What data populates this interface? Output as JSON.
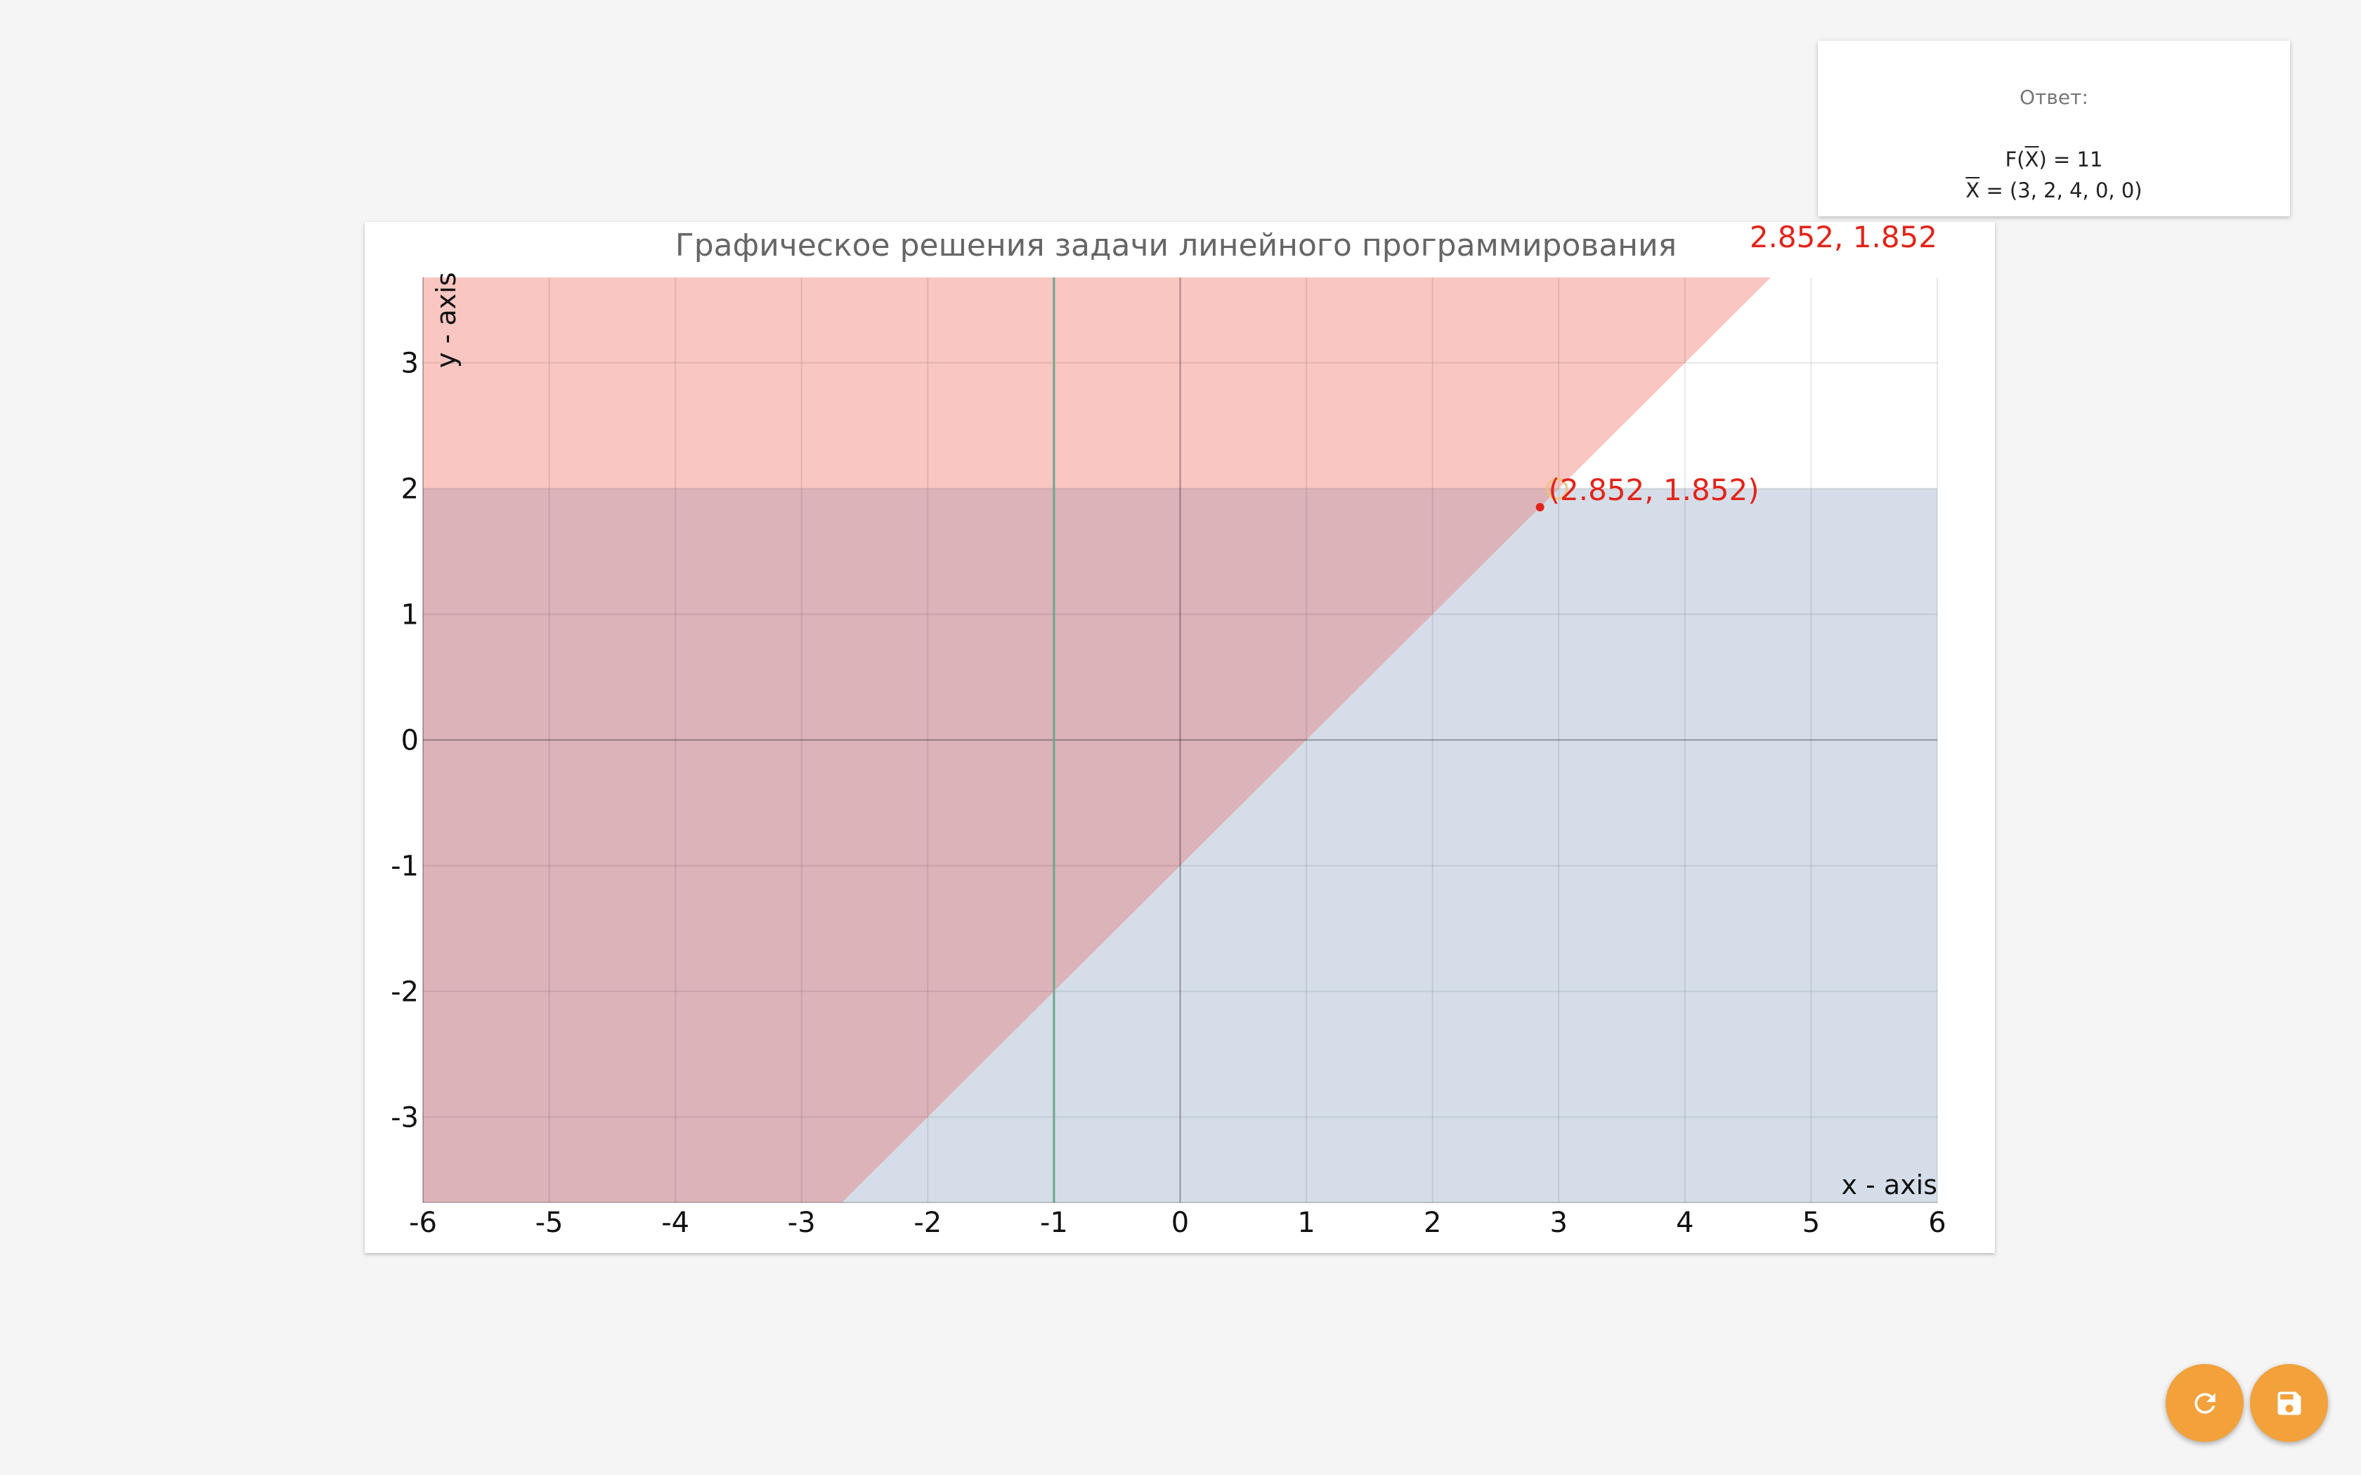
{
  "answer": {
    "title": "Ответ:",
    "f_label": "F(",
    "f_var": "X",
    "f_rest": ") = 11",
    "x_var": "X",
    "x_rest": " = (3, 2, 4, 0, 0)"
  },
  "coordinate_readout": "2.852, 1.852",
  "buttons": {
    "refresh_icon": "refresh-icon",
    "save_icon": "save-icon"
  },
  "colors": {
    "region_top": "#f9c6c1",
    "region_overlap": "#dcb3b9",
    "region_bottom": "#d5dee8",
    "highlight": "#e3241b",
    "vertical_line": "#6aa88b",
    "accent": "#f2a13b"
  },
  "chart_data": {
    "type": "area",
    "title": "Графическое решения задачи линейного программирования",
    "xlabel": "x - axis",
    "ylabel": "y - axis",
    "xlim": [
      -6,
      6
    ],
    "ylim": [
      -3.68,
      3.68
    ],
    "xticks": [
      -6,
      -5,
      -4,
      -3,
      -2,
      -1,
      0,
      1,
      2,
      3,
      4,
      5,
      6
    ],
    "yticks": [
      3,
      2,
      1,
      0,
      -1,
      -2,
      -3
    ],
    "grid": true,
    "regions": [
      {
        "name": "y >= x - 1",
        "bound": "y = x - 1",
        "side": "above"
      },
      {
        "name": "y <= 2",
        "bound": "y = 2",
        "side": "below"
      }
    ],
    "lines": [
      {
        "name": "x = -1",
        "x": -1
      }
    ],
    "point": {
      "x": 2.852,
      "y": 1.852,
      "label": "(2.852, 1.852)"
    }
  }
}
